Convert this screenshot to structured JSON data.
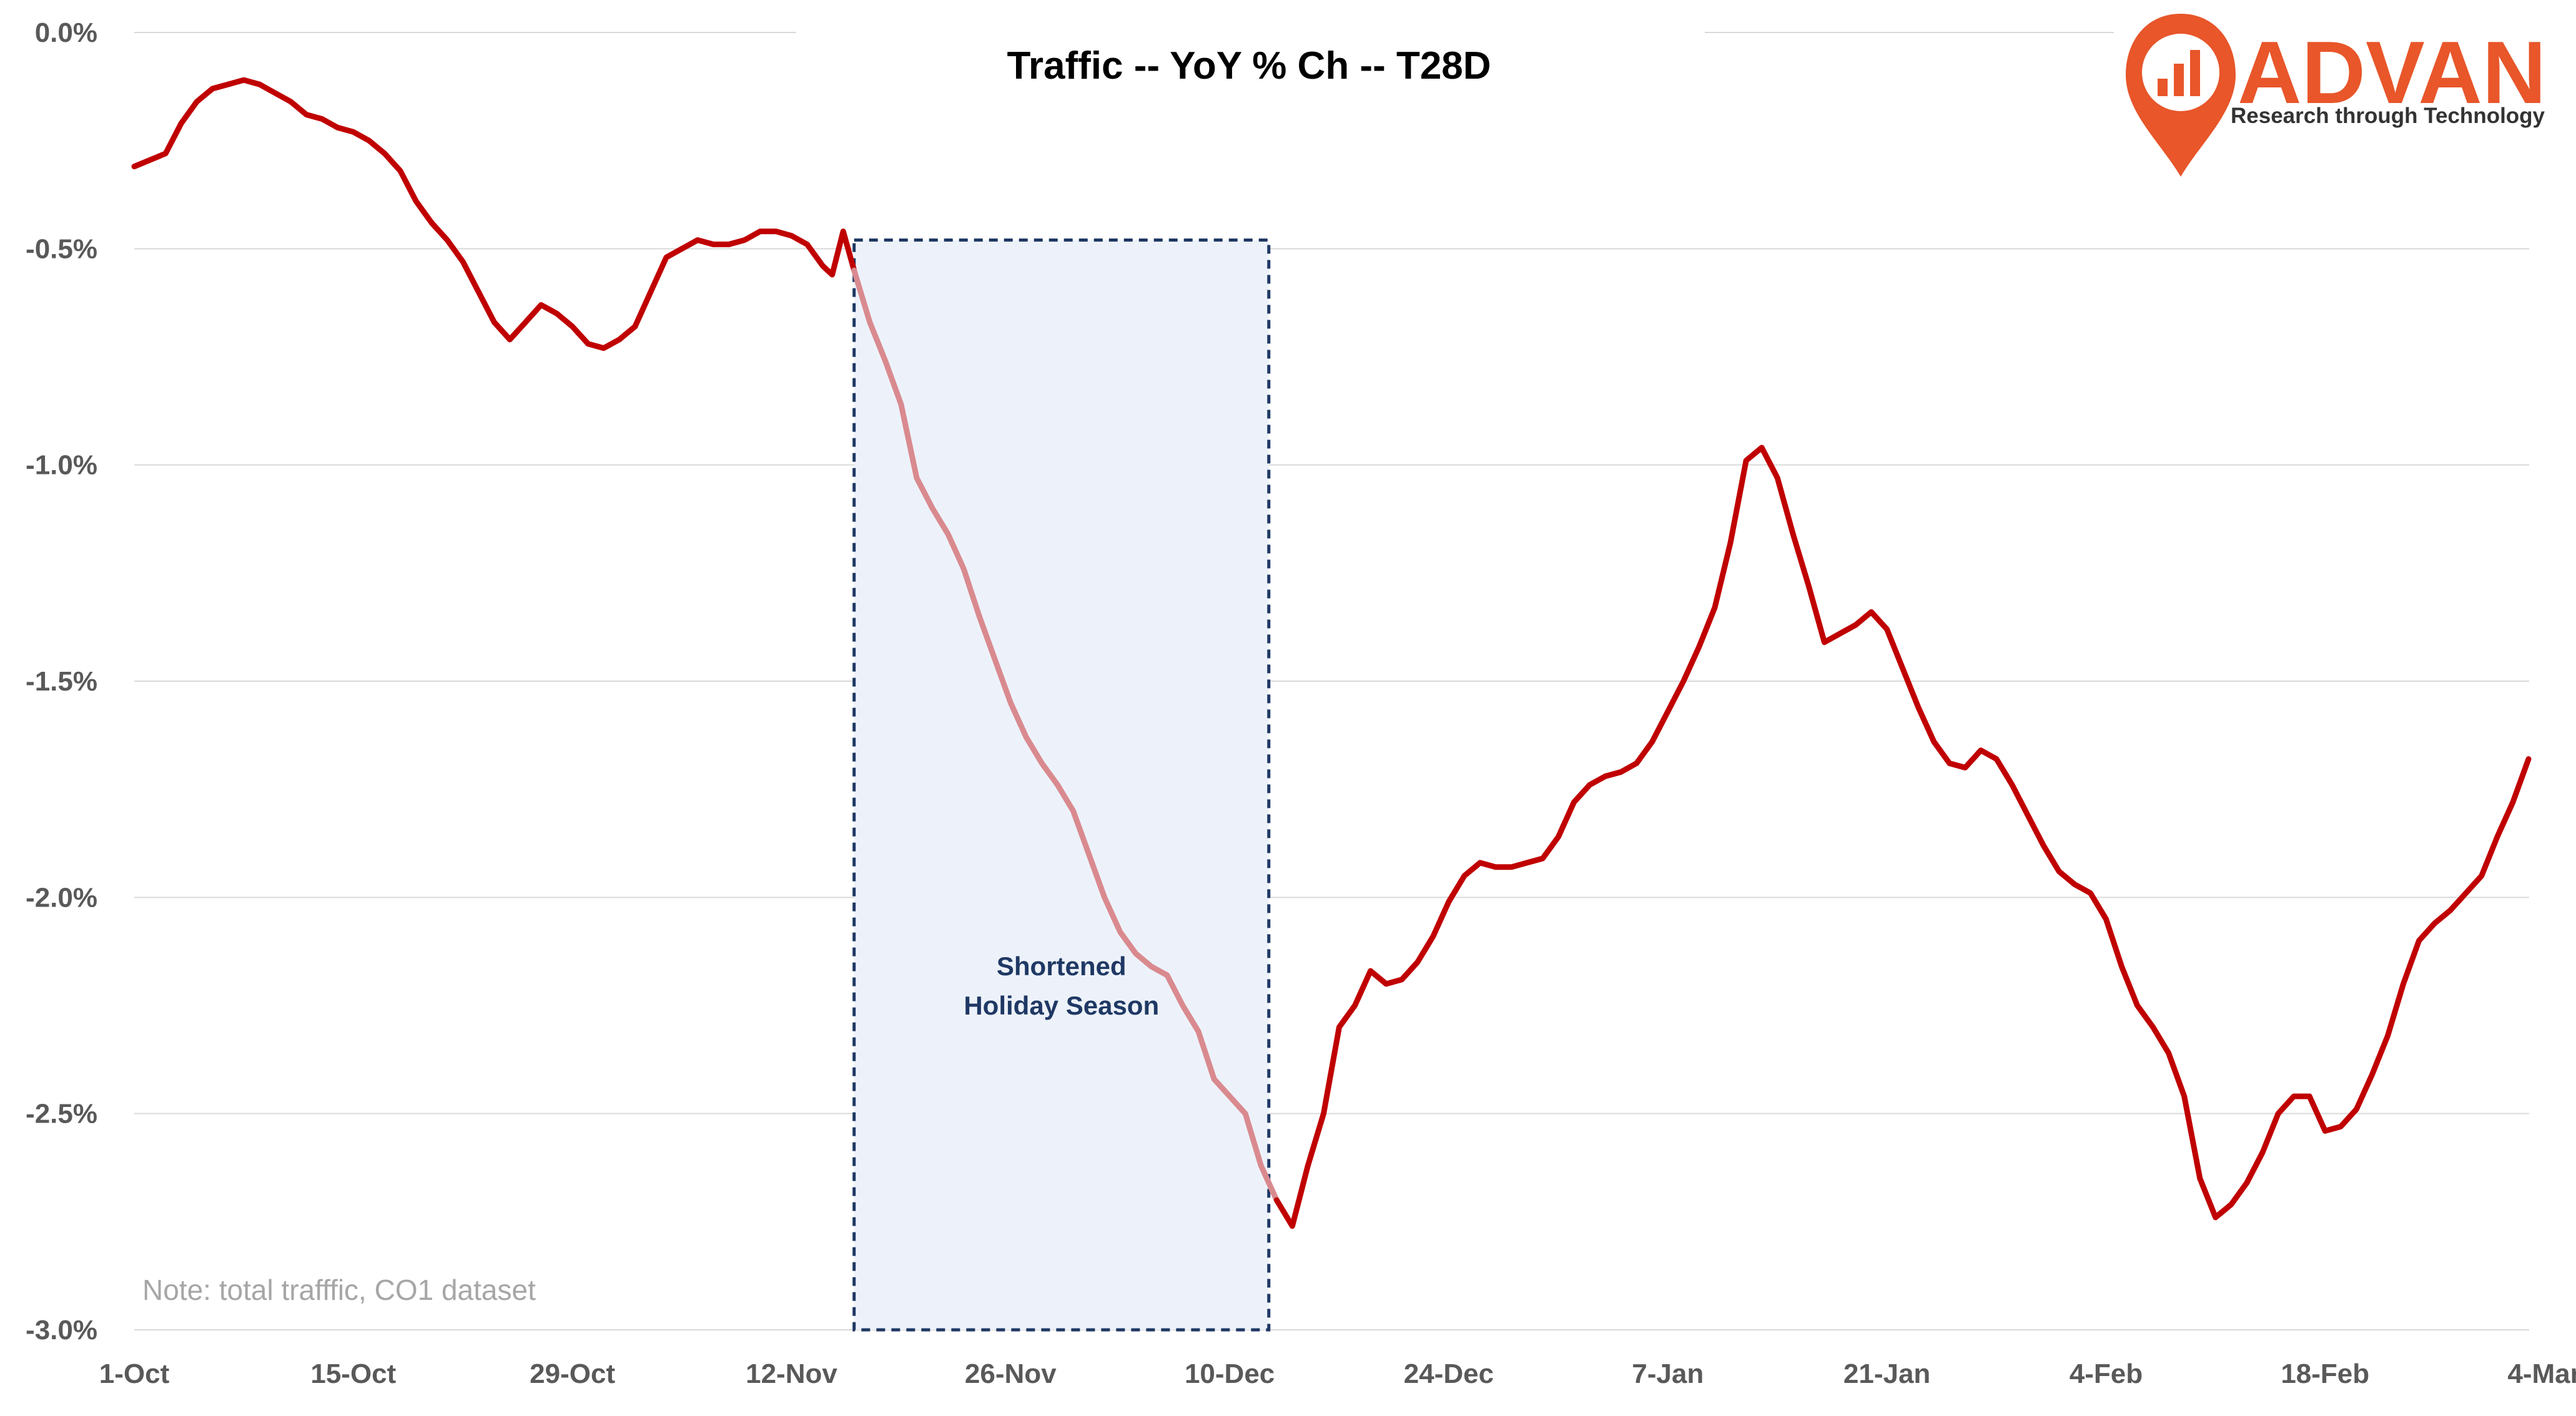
{
  "chart_data": {
    "type": "line",
    "title": "Traffic -- YoY % Ch -- T28D",
    "xlabel": "",
    "ylabel": "",
    "ylim": [
      -3.0,
      0.0
    ],
    "y_ticks": [
      0.0,
      -0.5,
      -1.0,
      -1.5,
      -2.0,
      -2.5,
      -3.0
    ],
    "y_tick_labels": [
      "0.0%",
      "-0.5%",
      "-1.0%",
      "-1.5%",
      "-2.0%",
      "-2.5%",
      "-3.0%"
    ],
    "x_tick_labels": [
      "1-Oct",
      "15-Oct",
      "29-Oct",
      "12-Nov",
      "26-Nov",
      "10-Dec",
      "24-Dec",
      "7-Jan",
      "21-Jan",
      "4-Feb",
      "18-Feb",
      "4-Mar"
    ],
    "grid": "horizontal",
    "series": [
      {
        "color": "#c00000",
        "highlight_color": "#d98a8f",
        "points": [
          [
            0,
            -0.31
          ],
          [
            2,
            -0.28
          ],
          [
            3,
            -0.21
          ],
          [
            4,
            -0.16
          ],
          [
            5,
            -0.13
          ],
          [
            6,
            -0.12
          ],
          [
            7,
            -0.11
          ],
          [
            8,
            -0.12
          ],
          [
            9,
            -0.14
          ],
          [
            10,
            -0.16
          ],
          [
            11,
            -0.19
          ],
          [
            12,
            -0.2
          ],
          [
            13,
            -0.22
          ],
          [
            14,
            -0.23
          ],
          [
            15,
            -0.25
          ],
          [
            16,
            -0.28
          ],
          [
            17,
            -0.32
          ],
          [
            18,
            -0.39
          ],
          [
            19,
            -0.44
          ],
          [
            20,
            -0.48
          ],
          [
            21,
            -0.53
          ],
          [
            22,
            -0.6
          ],
          [
            23,
            -0.67
          ],
          [
            24,
            -0.71
          ],
          [
            25,
            -0.67
          ],
          [
            26,
            -0.63
          ],
          [
            27,
            -0.65
          ],
          [
            28,
            -0.68
          ],
          [
            29,
            -0.72
          ],
          [
            30,
            -0.73
          ],
          [
            31,
            -0.71
          ],
          [
            32,
            -0.68
          ],
          [
            33,
            -0.6
          ],
          [
            34,
            -0.52
          ],
          [
            35,
            -0.5
          ],
          [
            36,
            -0.48
          ],
          [
            37,
            -0.49
          ],
          [
            38,
            -0.49
          ],
          [
            39,
            -0.48
          ],
          [
            40,
            -0.46
          ],
          [
            41,
            -0.46
          ],
          [
            42,
            -0.47
          ],
          [
            43,
            -0.49
          ],
          [
            44,
            -0.54
          ],
          [
            44.6,
            -0.56
          ],
          [
            45.3,
            -0.46
          ],
          [
            46,
            -0.55
          ],
          [
            47,
            -0.67
          ],
          [
            48,
            -0.76
          ],
          [
            49,
            -0.86
          ],
          [
            50,
            -1.03
          ],
          [
            51,
            -1.1
          ],
          [
            52,
            -1.16
          ],
          [
            53,
            -1.24
          ],
          [
            54,
            -1.35
          ],
          [
            55,
            -1.45
          ],
          [
            56,
            -1.55
          ],
          [
            57,
            -1.63
          ],
          [
            58,
            -1.69
          ],
          [
            59,
            -1.74
          ],
          [
            60,
            -1.8
          ],
          [
            61,
            -1.9
          ],
          [
            62,
            -2.0
          ],
          [
            63,
            -2.08
          ],
          [
            64,
            -2.13
          ],
          [
            65,
            -2.16
          ],
          [
            66,
            -2.18
          ],
          [
            67,
            -2.25
          ],
          [
            68,
            -2.31
          ],
          [
            69,
            -2.42
          ],
          [
            70,
            -2.46
          ],
          [
            71,
            -2.5
          ],
          [
            72,
            -2.62
          ],
          [
            73,
            -2.7
          ],
          [
            74,
            -2.76
          ],
          [
            75,
            -2.62
          ],
          [
            76,
            -2.5
          ],
          [
            77,
            -2.3
          ],
          [
            78,
            -2.25
          ],
          [
            79,
            -2.17
          ],
          [
            80,
            -2.2
          ],
          [
            81,
            -2.19
          ],
          [
            82,
            -2.15
          ],
          [
            83,
            -2.09
          ],
          [
            84,
            -2.01
          ],
          [
            85,
            -1.95
          ],
          [
            86,
            -1.92
          ],
          [
            87,
            -1.93
          ],
          [
            88,
            -1.93
          ],
          [
            89,
            -1.92
          ],
          [
            90,
            -1.91
          ],
          [
            91,
            -1.86
          ],
          [
            92,
            -1.78
          ],
          [
            93,
            -1.74
          ],
          [
            94,
            -1.72
          ],
          [
            95,
            -1.71
          ],
          [
            96,
            -1.69
          ],
          [
            97,
            -1.64
          ],
          [
            98,
            -1.57
          ],
          [
            99,
            -1.5
          ],
          [
            100,
            -1.42
          ],
          [
            101,
            -1.33
          ],
          [
            102,
            -1.18
          ],
          [
            103,
            -0.99
          ],
          [
            104,
            -0.96
          ],
          [
            105,
            -1.03
          ],
          [
            106,
            -1.16
          ],
          [
            107,
            -1.28
          ],
          [
            108,
            -1.41
          ],
          [
            109,
            -1.39
          ],
          [
            110,
            -1.37
          ],
          [
            111,
            -1.34
          ],
          [
            112,
            -1.38
          ],
          [
            113,
            -1.47
          ],
          [
            114,
            -1.56
          ],
          [
            115,
            -1.64
          ],
          [
            116,
            -1.69
          ],
          [
            117,
            -1.7
          ],
          [
            118,
            -1.66
          ],
          [
            119,
            -1.68
          ],
          [
            120,
            -1.74
          ],
          [
            121,
            -1.81
          ],
          [
            122,
            -1.88
          ],
          [
            123,
            -1.94
          ],
          [
            124,
            -1.97
          ],
          [
            125,
            -1.99
          ],
          [
            126,
            -2.05
          ],
          [
            127,
            -2.16
          ],
          [
            128,
            -2.25
          ],
          [
            129,
            -2.3
          ],
          [
            130,
            -2.36
          ],
          [
            131,
            -2.46
          ],
          [
            132,
            -2.65
          ],
          [
            133,
            -2.74
          ],
          [
            134,
            -2.71
          ],
          [
            135,
            -2.66
          ],
          [
            136,
            -2.59
          ],
          [
            137,
            -2.5
          ],
          [
            138,
            -2.46
          ],
          [
            139,
            -2.46
          ],
          [
            140,
            -2.54
          ],
          [
            141,
            -2.53
          ],
          [
            142,
            -2.49
          ],
          [
            143,
            -2.41
          ],
          [
            144,
            -2.32
          ],
          [
            145,
            -2.2
          ],
          [
            146,
            -2.1
          ],
          [
            147,
            -2.06
          ],
          [
            148,
            -2.03
          ],
          [
            149,
            -1.99
          ],
          [
            150,
            -1.95
          ],
          [
            151,
            -1.86
          ],
          [
            152,
            -1.78
          ],
          [
            153,
            -1.68
          ]
        ]
      }
    ],
    "highlight_range": {
      "x_start": 46,
      "x_end": 73
    },
    "shaded_region": {
      "x_start": 46,
      "x_end": 72.5,
      "y_top": -0.48,
      "y_bottom": -3.0,
      "fill": "#edf2fa",
      "border": "#1f3864",
      "label_lines": [
        "Shortened",
        "Holiday Season"
      ]
    },
    "note": "Note: total trafffic, CO1 dataset",
    "line_color": "#c00000",
    "grid_color": "#d9d9d9"
  },
  "logo": {
    "name": "ADVAN",
    "tagline": "Research through Technology",
    "color": "#e8562a",
    "icon": "map-pin-chart-icon"
  }
}
